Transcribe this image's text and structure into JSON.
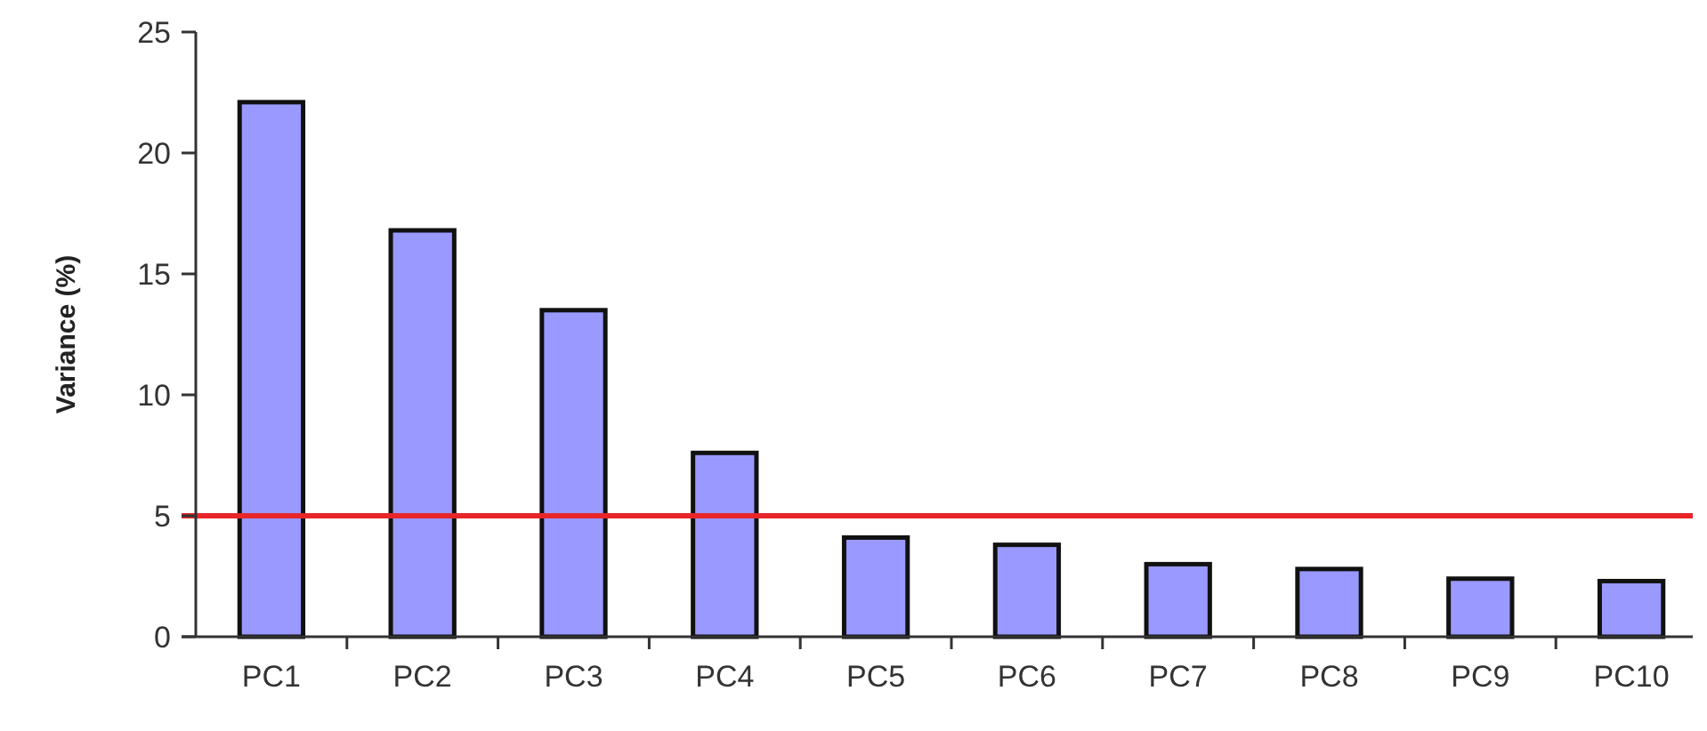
{
  "chart_data": {
    "type": "bar",
    "ylabel": "Variance (%)",
    "categories": [
      "PC1",
      "PC2",
      "PC3",
      "PC4",
      "PC5",
      "PC6",
      "PC7",
      "PC8",
      "PC9",
      "PC10"
    ],
    "values": [
      22.1,
      16.8,
      13.5,
      7.6,
      4.1,
      3.8,
      3.0,
      2.8,
      2.4,
      2.3
    ],
    "color": "#9999ff",
    "ylim": [
      0,
      25
    ],
    "yticks": [
      0,
      5,
      10,
      15,
      20,
      25
    ],
    "ref_lines": [
      {
        "axis": "y",
        "value": 5,
        "color": "#e8262a"
      }
    ]
  }
}
